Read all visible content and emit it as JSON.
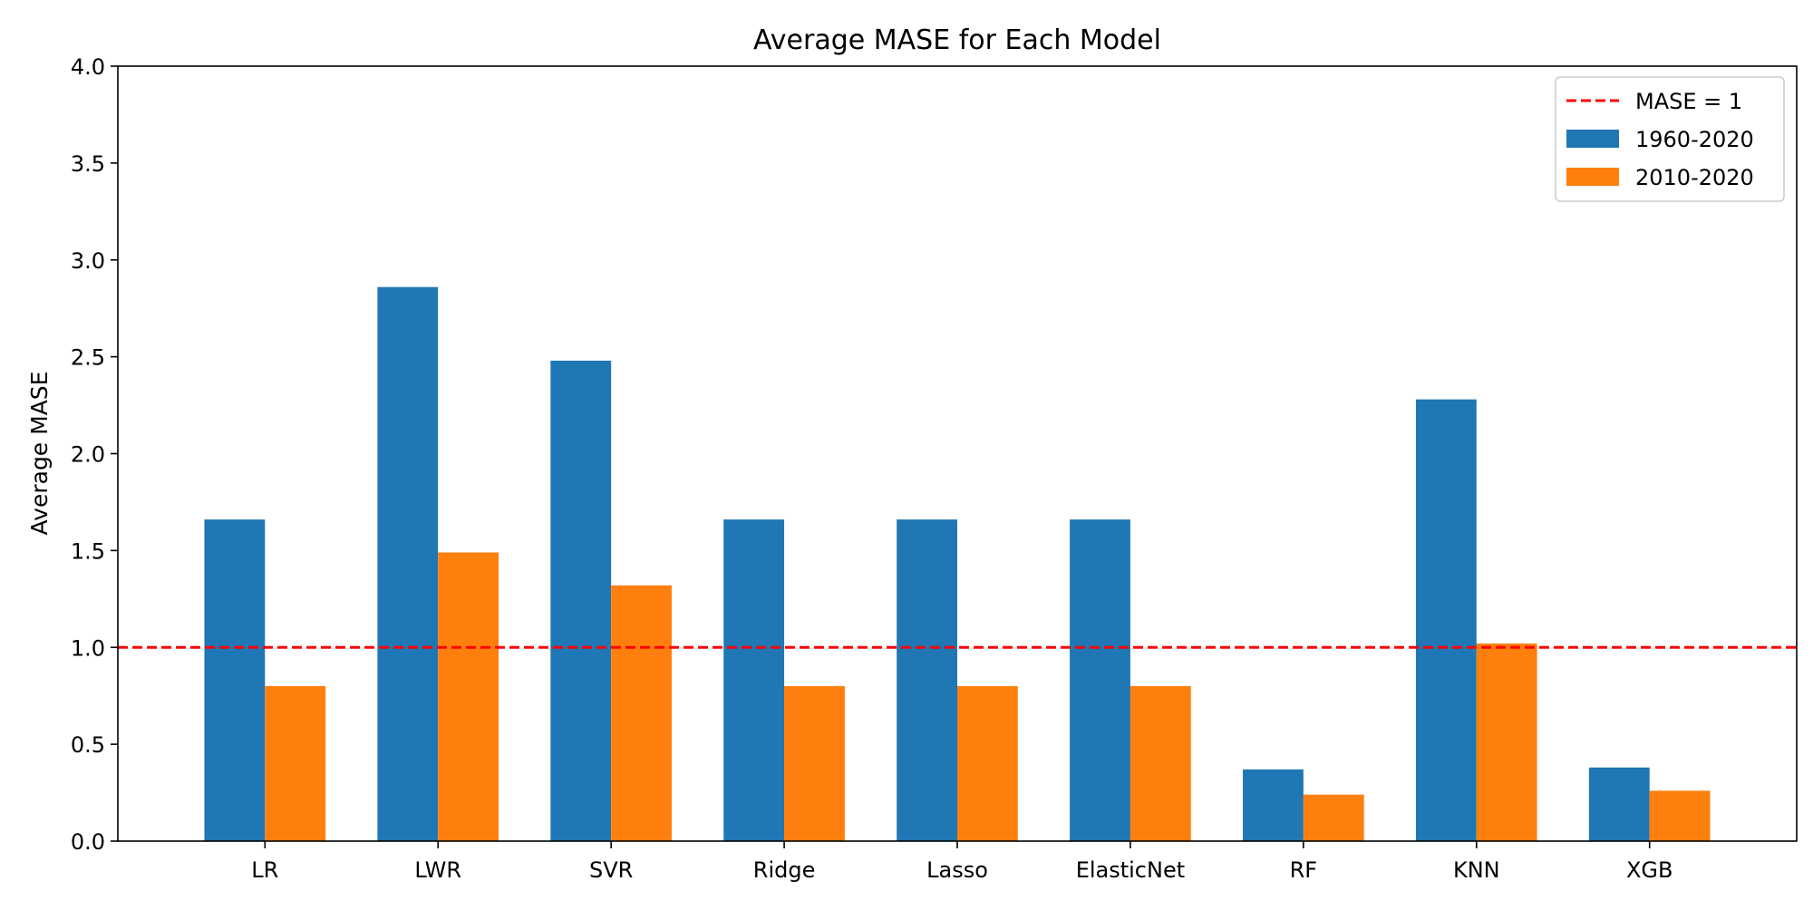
{
  "chart_data": {
    "type": "bar",
    "title": "Average MASE for Each Model",
    "xlabel": "",
    "ylabel": "Average MASE",
    "categories": [
      "LR",
      "LWR",
      "SVR",
      "Ridge",
      "Lasso",
      "ElasticNet",
      "RF",
      "KNN",
      "XGB"
    ],
    "series": [
      {
        "name": "1960-2020",
        "color": "#1f77b4",
        "values": [
          1.66,
          2.86,
          2.48,
          1.66,
          1.66,
          1.66,
          0.37,
          2.28,
          0.38
        ]
      },
      {
        "name": "2010-2020",
        "color": "#ff7f0e",
        "values": [
          0.8,
          1.49,
          1.32,
          0.8,
          0.8,
          0.8,
          0.24,
          1.02,
          0.26
        ]
      }
    ],
    "reference_line": {
      "label": "MASE = 1",
      "y": 1.0,
      "color": "#ff0000",
      "style": "dashed"
    },
    "ylim": [
      0,
      4
    ],
    "yticks": [
      "0.0",
      "0.5",
      "1.0",
      "1.5",
      "2.0",
      "2.5",
      "3.0",
      "3.5",
      "4.0"
    ],
    "grid": false,
    "legend_position": "top-right"
  }
}
